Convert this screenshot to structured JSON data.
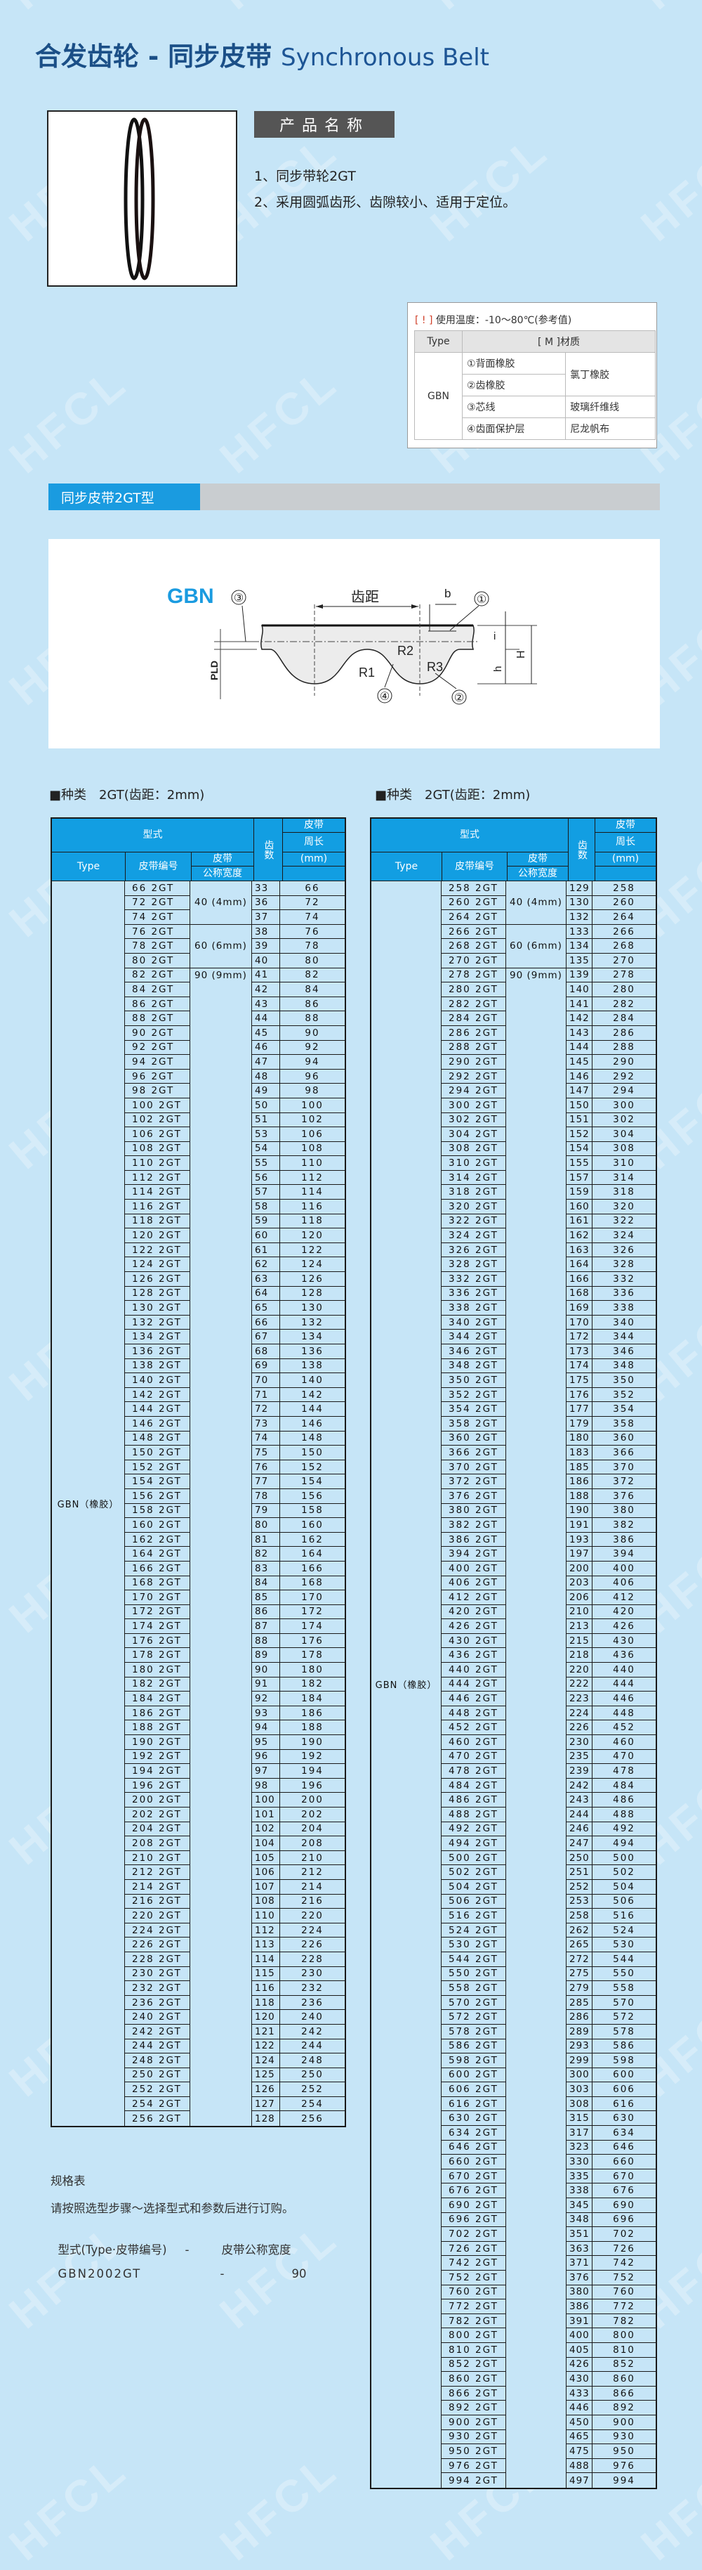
{
  "watermark": "HFCL",
  "header": {
    "title_cn": "合发齿轮 - 同步皮带",
    "title_en": "Synchronous Belt"
  },
  "product": {
    "name_label": "产品名称",
    "features": [
      "1、同步带轮2GT",
      "2、采用圆弧齿形、齿隙较小、适用于定位。"
    ]
  },
  "material_table": {
    "temp_mark": "[ ! ]",
    "temp_text": "使用温度：-10～80℃(参考值)",
    "col_type": "Type",
    "col_material": "[ M ]材质",
    "type": "GBN",
    "rows": [
      {
        "part": "①背面橡胶",
        "material": "氯丁橡胶"
      },
      {
        "part": "②齿橡胶",
        "material": ""
      },
      {
        "part": "③芯线",
        "material": "玻璃纤维线"
      },
      {
        "part": "④齿面保护层",
        "material": "尼龙帆布"
      }
    ]
  },
  "section": {
    "title": "同步皮带2GT型"
  },
  "diagram": {
    "type_label": "GBN",
    "pitch_label": "齿距",
    "b": "b",
    "i": "i",
    "h": "h",
    "H": "H",
    "pld": "PLD",
    "r1": "R1",
    "r2": "R2",
    "r3": "R3",
    "callouts": [
      "①",
      "②",
      "③",
      "④"
    ]
  },
  "tables": [
    {
      "kind": "■种类　2GT(齿距：2mm)",
      "head": {
        "model": "型式",
        "type": "Type",
        "code": "皮带编号",
        "width1": "皮带",
        "width2": "公称宽度",
        "teeth": "齿数",
        "len1": "皮带",
        "len2": "周长",
        "len3": "(mm)"
      },
      "type_value": "GBN（橡胶）",
      "width_groups": [
        {
          "label": "40 (4mm)",
          "rows": 3
        },
        {
          "label": "60 (6mm)",
          "rows": 3
        },
        {
          "label": "90 (9mm)",
          "rows": 80
        }
      ],
      "rows": [
        [
          "66 2GT",
          "33",
          "66"
        ],
        [
          "72 2GT",
          "36",
          "72"
        ],
        [
          "74 2GT",
          "37",
          "74"
        ],
        [
          "76 2GT",
          "38",
          "76"
        ],
        [
          "78 2GT",
          "39",
          "78"
        ],
        [
          "80 2GT",
          "40",
          "80"
        ],
        [
          "82 2GT",
          "41",
          "82"
        ],
        [
          "84 2GT",
          "42",
          "84"
        ],
        [
          "86 2GT",
          "43",
          "86"
        ],
        [
          "88 2GT",
          "44",
          "88"
        ],
        [
          "90 2GT",
          "45",
          "90"
        ],
        [
          "92 2GT",
          "46",
          "92"
        ],
        [
          "94 2GT",
          "47",
          "94"
        ],
        [
          "96 2GT",
          "48",
          "96"
        ],
        [
          "98 2GT",
          "49",
          "98"
        ],
        [
          "100 2GT",
          "50",
          "100"
        ],
        [
          "102 2GT",
          "51",
          "102"
        ],
        [
          "106 2GT",
          "53",
          "106"
        ],
        [
          "108 2GT",
          "54",
          "108"
        ],
        [
          "110 2GT",
          "55",
          "110"
        ],
        [
          "112 2GT",
          "56",
          "112"
        ],
        [
          "114 2GT",
          "57",
          "114"
        ],
        [
          "116 2GT",
          "58",
          "116"
        ],
        [
          "118 2GT",
          "59",
          "118"
        ],
        [
          "120 2GT",
          "60",
          "120"
        ],
        [
          "122 2GT",
          "61",
          "122"
        ],
        [
          "124 2GT",
          "62",
          "124"
        ],
        [
          "126 2GT",
          "63",
          "126"
        ],
        [
          "128 2GT",
          "64",
          "128"
        ],
        [
          "130 2GT",
          "65",
          "130"
        ],
        [
          "132 2GT",
          "66",
          "132"
        ],
        [
          "134 2GT",
          "67",
          "134"
        ],
        [
          "136 2GT",
          "68",
          "136"
        ],
        [
          "138 2GT",
          "69",
          "138"
        ],
        [
          "140 2GT",
          "70",
          "140"
        ],
        [
          "142 2GT",
          "71",
          "142"
        ],
        [
          "144 2GT",
          "72",
          "144"
        ],
        [
          "146 2GT",
          "73",
          "146"
        ],
        [
          "148 2GT",
          "74",
          "148"
        ],
        [
          "150 2GT",
          "75",
          "150"
        ],
        [
          "152 2GT",
          "76",
          "152"
        ],
        [
          "154 2GT",
          "77",
          "154"
        ],
        [
          "156 2GT",
          "78",
          "156"
        ],
        [
          "158 2GT",
          "79",
          "158"
        ],
        [
          "160 2GT",
          "80",
          "160"
        ],
        [
          "162 2GT",
          "81",
          "162"
        ],
        [
          "164 2GT",
          "82",
          "164"
        ],
        [
          "166 2GT",
          "83",
          "166"
        ],
        [
          "168 2GT",
          "84",
          "168"
        ],
        [
          "170 2GT",
          "85",
          "170"
        ],
        [
          "172 2GT",
          "86",
          "172"
        ],
        [
          "174 2GT",
          "87",
          "174"
        ],
        [
          "176 2GT",
          "88",
          "176"
        ],
        [
          "178 2GT",
          "89",
          "178"
        ],
        [
          "180 2GT",
          "90",
          "180"
        ],
        [
          "182 2GT",
          "91",
          "182"
        ],
        [
          "184 2GT",
          "92",
          "184"
        ],
        [
          "186 2GT",
          "93",
          "186"
        ],
        [
          "188 2GT",
          "94",
          "188"
        ],
        [
          "190 2GT",
          "95",
          "190"
        ],
        [
          "192 2GT",
          "96",
          "192"
        ],
        [
          "194 2GT",
          "97",
          "194"
        ],
        [
          "196 2GT",
          "98",
          "196"
        ],
        [
          "200 2GT",
          "100",
          "200"
        ],
        [
          "202 2GT",
          "101",
          "202"
        ],
        [
          "204 2GT",
          "102",
          "204"
        ],
        [
          "208 2GT",
          "104",
          "208"
        ],
        [
          "210 2GT",
          "105",
          "210"
        ],
        [
          "212 2GT",
          "106",
          "212"
        ],
        [
          "214 2GT",
          "107",
          "214"
        ],
        [
          "216 2GT",
          "108",
          "216"
        ],
        [
          "220 2GT",
          "110",
          "220"
        ],
        [
          "224 2GT",
          "112",
          "224"
        ],
        [
          "226 2GT",
          "113",
          "226"
        ],
        [
          "228 2GT",
          "114",
          "228"
        ],
        [
          "230 2GT",
          "115",
          "230"
        ],
        [
          "232 2GT",
          "116",
          "232"
        ],
        [
          "236 2GT",
          "118",
          "236"
        ],
        [
          "240 2GT",
          "120",
          "240"
        ],
        [
          "242 2GT",
          "121",
          "242"
        ],
        [
          "244 2GT",
          "122",
          "244"
        ],
        [
          "248 2GT",
          "124",
          "248"
        ],
        [
          "250 2GT",
          "125",
          "250"
        ],
        [
          "252 2GT",
          "126",
          "252"
        ],
        [
          "254 2GT",
          "127",
          "254"
        ],
        [
          "256 2GT",
          "128",
          "256"
        ]
      ]
    },
    {
      "kind": "■种类　2GT(齿距：2mm)",
      "head": {
        "model": "型式",
        "type": "Type",
        "code": "皮带编号",
        "width1": "皮带",
        "width2": "公称宽度",
        "teeth": "齿数",
        "len1": "皮带",
        "len2": "周长",
        "len3": "(mm)"
      },
      "type_value": "GBN（橡胶）",
      "width_groups": [
        {
          "label": "40 (4mm)",
          "rows": 3
        },
        {
          "label": "60 (6mm)",
          "rows": 3
        },
        {
          "label": "90 (9mm)",
          "rows": 105
        }
      ],
      "rows": [
        [
          "258 2GT",
          "129",
          "258"
        ],
        [
          "260 2GT",
          "130",
          "260"
        ],
        [
          "264 2GT",
          "132",
          "264"
        ],
        [
          "266 2GT",
          "133",
          "266"
        ],
        [
          "268 2GT",
          "134",
          "268"
        ],
        [
          "270 2GT",
          "135",
          "270"
        ],
        [
          "278 2GT",
          "139",
          "278"
        ],
        [
          "280 2GT",
          "140",
          "280"
        ],
        [
          "282 2GT",
          "141",
          "282"
        ],
        [
          "284 2GT",
          "142",
          "284"
        ],
        [
          "286 2GT",
          "143",
          "286"
        ],
        [
          "288 2GT",
          "144",
          "288"
        ],
        [
          "290 2GT",
          "145",
          "290"
        ],
        [
          "292 2GT",
          "146",
          "292"
        ],
        [
          "294 2GT",
          "147",
          "294"
        ],
        [
          "300 2GT",
          "150",
          "300"
        ],
        [
          "302 2GT",
          "151",
          "302"
        ],
        [
          "304 2GT",
          "152",
          "304"
        ],
        [
          "308 2GT",
          "154",
          "308"
        ],
        [
          "310 2GT",
          "155",
          "310"
        ],
        [
          "314 2GT",
          "157",
          "314"
        ],
        [
          "318 2GT",
          "159",
          "318"
        ],
        [
          "320 2GT",
          "160",
          "320"
        ],
        [
          "322 2GT",
          "161",
          "322"
        ],
        [
          "324 2GT",
          "162",
          "324"
        ],
        [
          "326 2GT",
          "163",
          "326"
        ],
        [
          "328 2GT",
          "164",
          "328"
        ],
        [
          "332 2GT",
          "166",
          "332"
        ],
        [
          "336 2GT",
          "168",
          "336"
        ],
        [
          "338 2GT",
          "169",
          "338"
        ],
        [
          "340 2GT",
          "170",
          "340"
        ],
        [
          "344 2GT",
          "172",
          "344"
        ],
        [
          "346 2GT",
          "173",
          "346"
        ],
        [
          "348 2GT",
          "174",
          "348"
        ],
        [
          "350 2GT",
          "175",
          "350"
        ],
        [
          "352 2GT",
          "176",
          "352"
        ],
        [
          "354 2GT",
          "177",
          "354"
        ],
        [
          "358 2GT",
          "179",
          "358"
        ],
        [
          "360 2GT",
          "180",
          "360"
        ],
        [
          "366 2GT",
          "183",
          "366"
        ],
        [
          "370 2GT",
          "185",
          "370"
        ],
        [
          "372 2GT",
          "186",
          "372"
        ],
        [
          "376 2GT",
          "188",
          "376"
        ],
        [
          "380 2GT",
          "190",
          "380"
        ],
        [
          "382 2GT",
          "191",
          "382"
        ],
        [
          "386 2GT",
          "193",
          "386"
        ],
        [
          "394 2GT",
          "197",
          "394"
        ],
        [
          "400 2GT",
          "200",
          "400"
        ],
        [
          "406 2GT",
          "203",
          "406"
        ],
        [
          "412 2GT",
          "206",
          "412"
        ],
        [
          "420 2GT",
          "210",
          "420"
        ],
        [
          "426 2GT",
          "213",
          "426"
        ],
        [
          "430 2GT",
          "215",
          "430"
        ],
        [
          "436 2GT",
          "218",
          "436"
        ],
        [
          "440 2GT",
          "220",
          "440"
        ],
        [
          "444 2GT",
          "222",
          "444"
        ],
        [
          "446 2GT",
          "223",
          "446"
        ],
        [
          "448 2GT",
          "224",
          "448"
        ],
        [
          "452 2GT",
          "226",
          "452"
        ],
        [
          "460 2GT",
          "230",
          "460"
        ],
        [
          "470 2GT",
          "235",
          "470"
        ],
        [
          "478 2GT",
          "239",
          "478"
        ],
        [
          "484 2GT",
          "242",
          "484"
        ],
        [
          "486 2GT",
          "243",
          "486"
        ],
        [
          "488 2GT",
          "244",
          "488"
        ],
        [
          "492 2GT",
          "246",
          "492"
        ],
        [
          "494 2GT",
          "247",
          "494"
        ],
        [
          "500 2GT",
          "250",
          "500"
        ],
        [
          "502 2GT",
          "251",
          "502"
        ],
        [
          "504 2GT",
          "252",
          "504"
        ],
        [
          "506 2GT",
          "253",
          "506"
        ],
        [
          "516 2GT",
          "258",
          "516"
        ],
        [
          "524 2GT",
          "262",
          "524"
        ],
        [
          "530 2GT",
          "265",
          "530"
        ],
        [
          "544 2GT",
          "272",
          "544"
        ],
        [
          "550 2GT",
          "275",
          "550"
        ],
        [
          "558 2GT",
          "279",
          "558"
        ],
        [
          "570 2GT",
          "285",
          "570"
        ],
        [
          "572 2GT",
          "286",
          "572"
        ],
        [
          "578 2GT",
          "289",
          "578"
        ],
        [
          "586 2GT",
          "293",
          "586"
        ],
        [
          "598 2GT",
          "299",
          "598"
        ],
        [
          "600 2GT",
          "300",
          "600"
        ],
        [
          "606 2GT",
          "303",
          "606"
        ],
        [
          "616 2GT",
          "308",
          "616"
        ],
        [
          "630 2GT",
          "315",
          "630"
        ],
        [
          "634 2GT",
          "317",
          "634"
        ],
        [
          "646 2GT",
          "323",
          "646"
        ],
        [
          "660 2GT",
          "330",
          "660"
        ],
        [
          "670 2GT",
          "335",
          "670"
        ],
        [
          "676 2GT",
          "338",
          "676"
        ],
        [
          "690 2GT",
          "345",
          "690"
        ],
        [
          "696 2GT",
          "348",
          "696"
        ],
        [
          "702 2GT",
          "351",
          "702"
        ],
        [
          "726 2GT",
          "363",
          "726"
        ],
        [
          "742 2GT",
          "371",
          "742"
        ],
        [
          "752 2GT",
          "376",
          "752"
        ],
        [
          "760 2GT",
          "380",
          "760"
        ],
        [
          "772 2GT",
          "386",
          "772"
        ],
        [
          "782 2GT",
          "391",
          "782"
        ],
        [
          "800 2GT",
          "400",
          "800"
        ],
        [
          "810 2GT",
          "405",
          "810"
        ],
        [
          "852 2GT",
          "426",
          "852"
        ],
        [
          "860 2GT",
          "430",
          "860"
        ],
        [
          "866 2GT",
          "433",
          "866"
        ],
        [
          "892 2GT",
          "446",
          "892"
        ],
        [
          "900 2GT",
          "450",
          "900"
        ],
        [
          "930 2GT",
          "465",
          "930"
        ],
        [
          "950 2GT",
          "475",
          "950"
        ],
        [
          "976 2GT",
          "488",
          "976"
        ],
        [
          "994 2GT",
          "497",
          "994"
        ]
      ]
    }
  ],
  "notes": {
    "heading": "规格表",
    "instruction": "请按照选型步骤～选择型式和参数后进行订购。",
    "format_left": "型式(Type·皮带编号)",
    "format_dash": "-",
    "format_right": "皮带公称宽度",
    "example_left": "GBN2002GT",
    "example_dash": "-",
    "example_right": "90"
  },
  "colors": {
    "background": "#c6e5f7",
    "title": "#1b4f87",
    "header_blue": "#129ee2",
    "label_gray": "#555555"
  }
}
